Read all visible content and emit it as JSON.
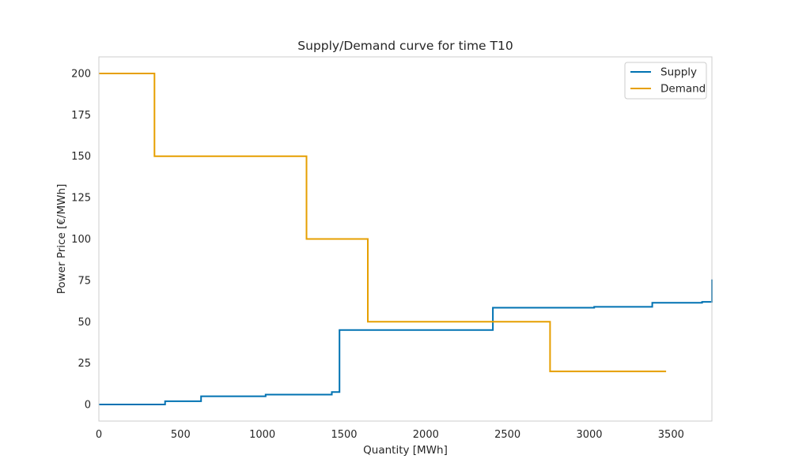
{
  "chart_data": {
    "type": "line",
    "step": true,
    "title": "Supply/Demand curve for time T10",
    "xlabel": "Quantity [MWh]",
    "ylabel": "Power Price [€/MWh]",
    "xlim": [
      0,
      3750
    ],
    "ylim": [
      -10,
      210
    ],
    "xticks": [
      0,
      500,
      1000,
      1500,
      2000,
      2500,
      3000,
      3500
    ],
    "yticks": [
      0,
      25,
      50,
      75,
      100,
      125,
      150,
      175,
      200
    ],
    "grid": false,
    "legend_position": "top-right",
    "series": [
      {
        "name": "Supply",
        "color": "#0072b2",
        "x": [
          0,
          405,
          405,
          625,
          625,
          1020,
          1020,
          1425,
          1425,
          1472,
          1472,
          2410,
          2410,
          3030,
          3030,
          3385,
          3385,
          3690,
          3690,
          3750,
          3750
        ],
        "y": [
          0,
          0,
          2,
          2,
          5,
          5,
          6,
          6,
          7.5,
          7.5,
          45,
          45,
          58.5,
          58.5,
          59,
          59,
          61.5,
          61.5,
          62,
          62,
          75.5
        ]
      },
      {
        "name": "Demand",
        "color": "#e69f00",
        "x": [
          0,
          340,
          340,
          1270,
          1270,
          1645,
          1645,
          2760,
          2760,
          3470
        ],
        "y": [
          200,
          200,
          150,
          150,
          100,
          100,
          50,
          50,
          20,
          20
        ]
      }
    ]
  }
}
